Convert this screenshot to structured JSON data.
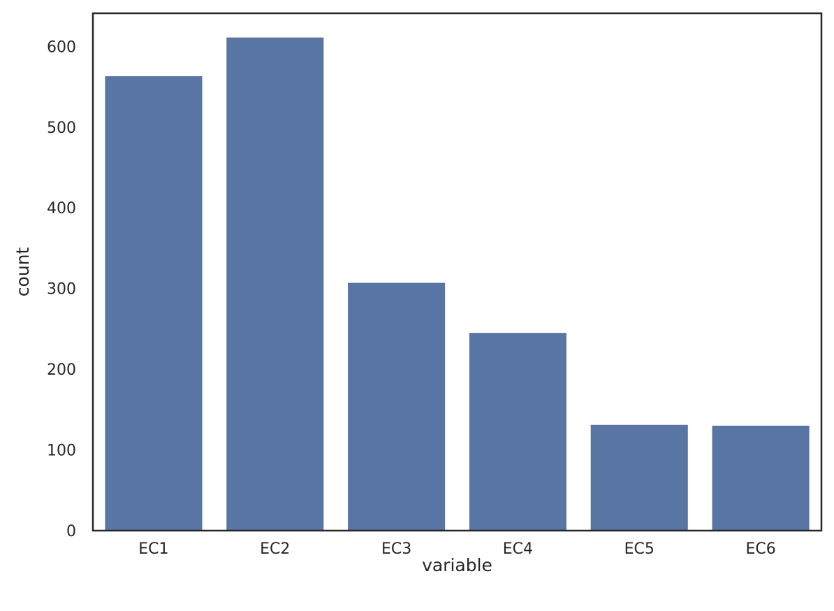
{
  "chart_data": {
    "type": "bar",
    "categories": [
      "EC1",
      "EC2",
      "EC3",
      "EC4",
      "EC5",
      "EC6"
    ],
    "values": [
      563,
      611,
      307,
      245,
      131,
      130
    ],
    "title": "",
    "xlabel": "variable",
    "ylabel": "count",
    "ylim": [
      0,
      641
    ],
    "yticks": [
      0,
      100,
      200,
      300,
      400,
      500,
      600
    ],
    "grid": false,
    "legend": "none",
    "bar_color": "#5975a4",
    "axis_color": "#262626",
    "text_color": "#262626",
    "background": "#ffffff"
  }
}
